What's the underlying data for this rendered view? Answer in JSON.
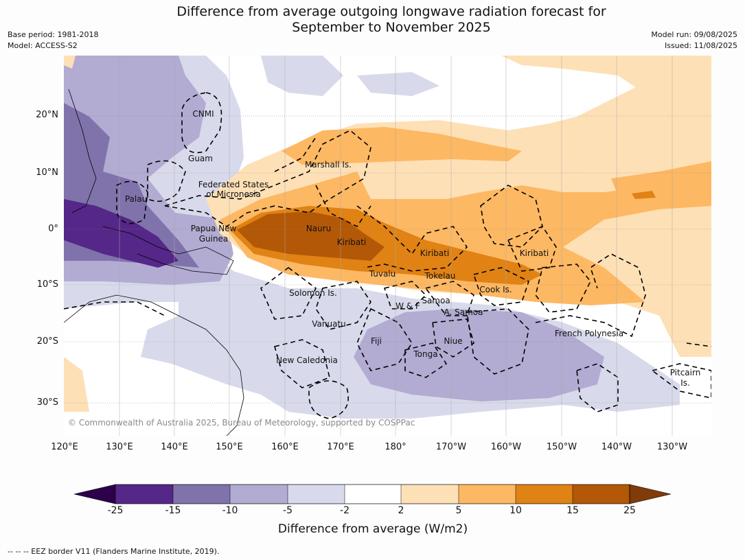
{
  "title_line1": "Difference from average outgoing longwave radiation forecast for",
  "title_line2": "September to November 2025",
  "meta_left": {
    "base_period": "Base period: 1981-2018",
    "model": "Model: ACCESS-S2"
  },
  "meta_right": {
    "model_run": "Model run: 09/08/2025",
    "issued": "Issued: 11/08/2025"
  },
  "map": {
    "lat_labels": [
      "20°N",
      "10°N",
      "0°",
      "10°S",
      "20°S",
      "30°S"
    ],
    "lon_labels": [
      "120°E",
      "130°E",
      "140°E",
      "150°E",
      "160°E",
      "170°E",
      "180°",
      "170°W",
      "160°W",
      "150°W",
      "140°W",
      "130°W"
    ],
    "copyright": "© Commonwealth of Australia 2025, Bureau of Meteorology, supported by COSPPac",
    "places": [
      {
        "id": "cnmi",
        "text": "CNMI"
      },
      {
        "id": "guam",
        "text": "Guam"
      },
      {
        "id": "marshall",
        "text": "Marshall Is."
      },
      {
        "id": "fsm1",
        "text": "Federated States"
      },
      {
        "id": "fsm2",
        "text": "of Micronesia"
      },
      {
        "id": "palau",
        "text": "Palau"
      },
      {
        "id": "png1",
        "text": "Papua New"
      },
      {
        "id": "png2",
        "text": "Guinea"
      },
      {
        "id": "nauru",
        "text": "Nauru"
      },
      {
        "id": "kiribati1",
        "text": "Kiribati"
      },
      {
        "id": "kiribati2",
        "text": "Kiribati"
      },
      {
        "id": "kiribati3",
        "text": "Kiribati"
      },
      {
        "id": "tuvalu",
        "text": "Tuvalu"
      },
      {
        "id": "tokelau",
        "text": "Tokelau"
      },
      {
        "id": "cook",
        "text": "Cook Is."
      },
      {
        "id": "solomon",
        "text": "Solomon Is."
      },
      {
        "id": "wf",
        "text": "W & F"
      },
      {
        "id": "samoa",
        "text": "Samoa"
      },
      {
        "id": "asamoa",
        "text": "A. Samoa"
      },
      {
        "id": "vanuatu",
        "text": "Vanuatu"
      },
      {
        "id": "fiji",
        "text": "Fiji"
      },
      {
        "id": "niue",
        "text": "Niue"
      },
      {
        "id": "tonga",
        "text": "Tonga"
      },
      {
        "id": "frenchpoly",
        "text": "French Polynesia"
      },
      {
        "id": "newcal",
        "text": "New Caledonia"
      },
      {
        "id": "pitcairn1",
        "text": "Pitcairn"
      },
      {
        "id": "pitcairn2",
        "text": "Is."
      }
    ]
  },
  "colorbar": {
    "title": "Difference from average (W/m2)",
    "ticks": [
      "-25",
      "-15",
      "-10",
      "-5",
      "-2",
      "2",
      "5",
      "10",
      "15",
      "25"
    ],
    "colors": {
      "below_min": "#2d004b",
      "c1": "#542788",
      "c2": "#8073ac",
      "c3": "#b2abd2",
      "c4": "#d8daeb",
      "c5": "#ffffff",
      "c6": "#fee0b6",
      "c7": "#fdb863",
      "c8": "#e08214",
      "c9": "#b35806",
      "above_max": "#7f3b08"
    }
  },
  "footer": "--  --  -- EEZ border V11 (Flanders Marine Institute, 2019)."
}
